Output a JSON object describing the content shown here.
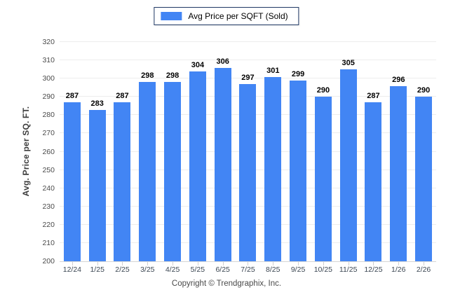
{
  "legend": {
    "label": "Avg Price per SQFT (Sold)",
    "swatch_color": "#4285f4"
  },
  "chart_data": {
    "type": "bar",
    "title": "",
    "series_name": "Avg Price per SQFT (Sold)",
    "categories": [
      "12/24",
      "1/25",
      "2/25",
      "3/25",
      "4/25",
      "5/25",
      "6/25",
      "7/25",
      "8/25",
      "9/25",
      "10/25",
      "11/25",
      "12/25",
      "1/26",
      "2/26"
    ],
    "values": [
      287,
      283,
      287,
      298,
      298,
      304,
      306,
      297,
      301,
      299,
      290,
      305,
      287,
      296,
      290
    ],
    "xlabel": "",
    "ylabel": "Avg. Price per SQ. FT.",
    "ylim": [
      200,
      320
    ],
    "ytick_step": 10,
    "bar_color": "#4285f4",
    "grid": true,
    "legend_position": "top"
  },
  "footer": {
    "copyright": "Copyright © Trendgraphix, Inc."
  }
}
